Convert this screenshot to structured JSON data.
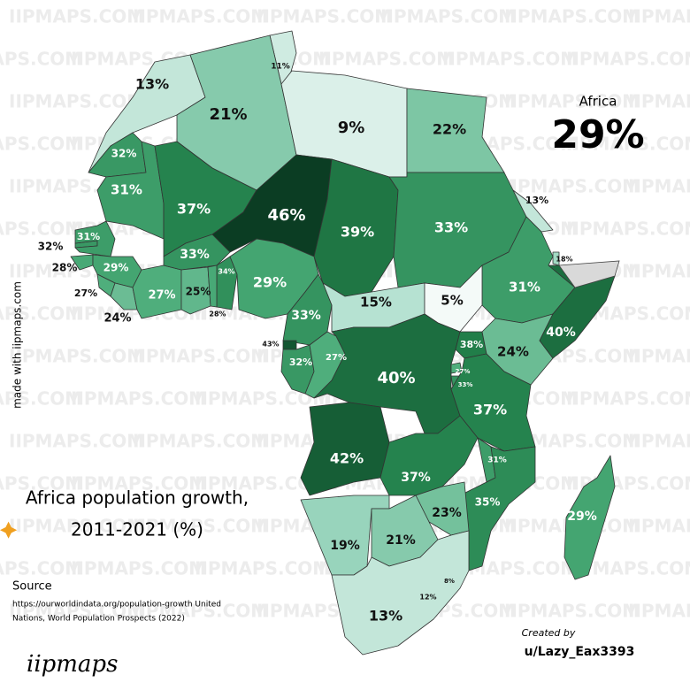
{
  "map": {
    "type": "choropleth",
    "title": [
      "Africa population growth,",
      "2011-2021 (%)"
    ],
    "summary": {
      "name": "Africa",
      "value": 29,
      "value_label": "29%"
    },
    "values": [
      11,
      13,
      21,
      9,
      22,
      32,
      31,
      37,
      46,
      39,
      33,
      13,
      32,
      31,
      28,
      29,
      27,
      24,
      27,
      33,
      25,
      34,
      28,
      29,
      18,
      31,
      15,
      5,
      33,
      43,
      32,
      27,
      40,
      38,
      24,
      40,
      27,
      33,
      37,
      42,
      37,
      31,
      35,
      23,
      29,
      19,
      21,
      8,
      12,
      13
    ],
    "value_labels": [
      "11%",
      "13%",
      "21%",
      "9%",
      "22%",
      "32%",
      "31%",
      "37%",
      "46%",
      "39%",
      "33%",
      "13%",
      "32%",
      "31%",
      "28%",
      "29%",
      "27%",
      "24%",
      "27%",
      "33%",
      "25%",
      "34%",
      "28%",
      "29%",
      "18%",
      "31%",
      "15%",
      "5%",
      "33%",
      "43%",
      "32%",
      "27%",
      "40%",
      "38%",
      "24%",
      "40%",
      "27%",
      "33%",
      "37%",
      "42%",
      "37%",
      "31%",
      "35%",
      "23%",
      "29%",
      "19%",
      "21%",
      "8%",
      "12%",
      "13%"
    ]
  },
  "source": {
    "heading": "Source",
    "lines": [
      "https://ourworldindata.org/population-growth United",
      "Nations, World Population Prospects (2022)"
    ]
  },
  "credit": {
    "label": "Created by",
    "author": "u/Lazy_Eax3393"
  },
  "side_note": "made with iipmaps.com",
  "logo": "iipmaps",
  "watermark": "IIPMAPS.COM"
}
